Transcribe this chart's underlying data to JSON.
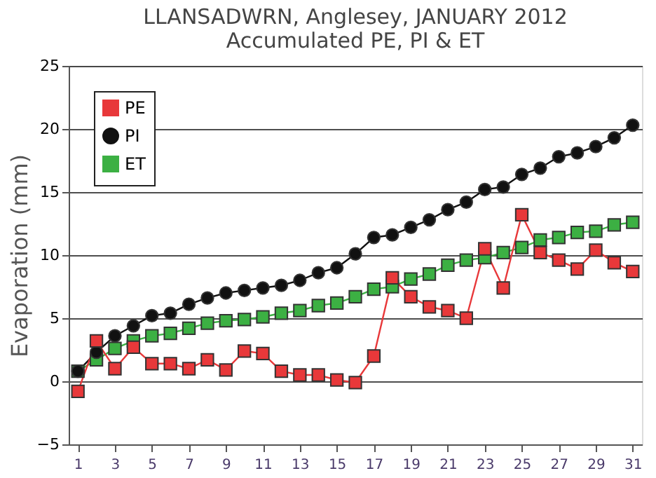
{
  "chart_data": {
    "type": "line",
    "title": "LLANSADWRN, Anglesey, JANUARY 2012",
    "subtitle": "Accumulated PE, PI & ET",
    "ylabel": "Evaporation (mm)",
    "x": [
      1,
      2,
      3,
      4,
      5,
      6,
      7,
      8,
      9,
      10,
      11,
      12,
      13,
      14,
      15,
      16,
      17,
      18,
      19,
      20,
      21,
      22,
      23,
      24,
      25,
      26,
      27,
      28,
      29,
      30,
      31
    ],
    "xlim": [
      0.5,
      31.5
    ],
    "xticks": [
      1,
      3,
      5,
      7,
      9,
      11,
      13,
      15,
      17,
      19,
      21,
      23,
      25,
      27,
      29,
      31
    ],
    "ylim": [
      -5,
      25
    ],
    "yticks": [
      -5,
      0,
      5,
      10,
      15,
      20,
      25
    ],
    "grid": "y",
    "legend": "top left",
    "line_style": "solid",
    "series": [
      {
        "name": "PE",
        "color": "#e8383a",
        "marker": "square",
        "values": [
          -0.8,
          3.2,
          1.0,
          2.7,
          1.4,
          1.4,
          1.0,
          1.7,
          0.9,
          2.4,
          2.2,
          0.8,
          0.5,
          0.5,
          0.1,
          -0.1,
          2.0,
          8.2,
          6.7,
          5.9,
          5.6,
          5.0,
          10.5,
          7.4,
          13.2,
          10.2,
          9.6,
          8.9,
          10.4,
          9.4,
          8.7
        ]
      },
      {
        "name": "PI",
        "color": "#111111",
        "marker": "circle",
        "values": [
          0.8,
          2.3,
          3.6,
          4.4,
          5.2,
          5.4,
          6.1,
          6.6,
          7.0,
          7.2,
          7.4,
          7.6,
          8.0,
          8.6,
          9.0,
          10.1,
          11.4,
          11.6,
          12.2,
          12.8,
          13.6,
          14.2,
          15.2,
          15.4,
          16.4,
          16.9,
          17.8,
          18.1,
          18.6,
          19.3,
          20.3
        ]
      },
      {
        "name": "ET",
        "color": "#3cb043",
        "marker": "square",
        "values": [
          0.8,
          1.7,
          2.6,
          3.2,
          3.6,
          3.8,
          4.2,
          4.6,
          4.8,
          4.9,
          5.1,
          5.4,
          5.6,
          6.0,
          6.2,
          6.7,
          7.3,
          7.5,
          8.1,
          8.5,
          9.2,
          9.6,
          9.8,
          10.2,
          10.6,
          11.2,
          11.4,
          11.8,
          11.9,
          12.4,
          12.6
        ]
      }
    ]
  }
}
